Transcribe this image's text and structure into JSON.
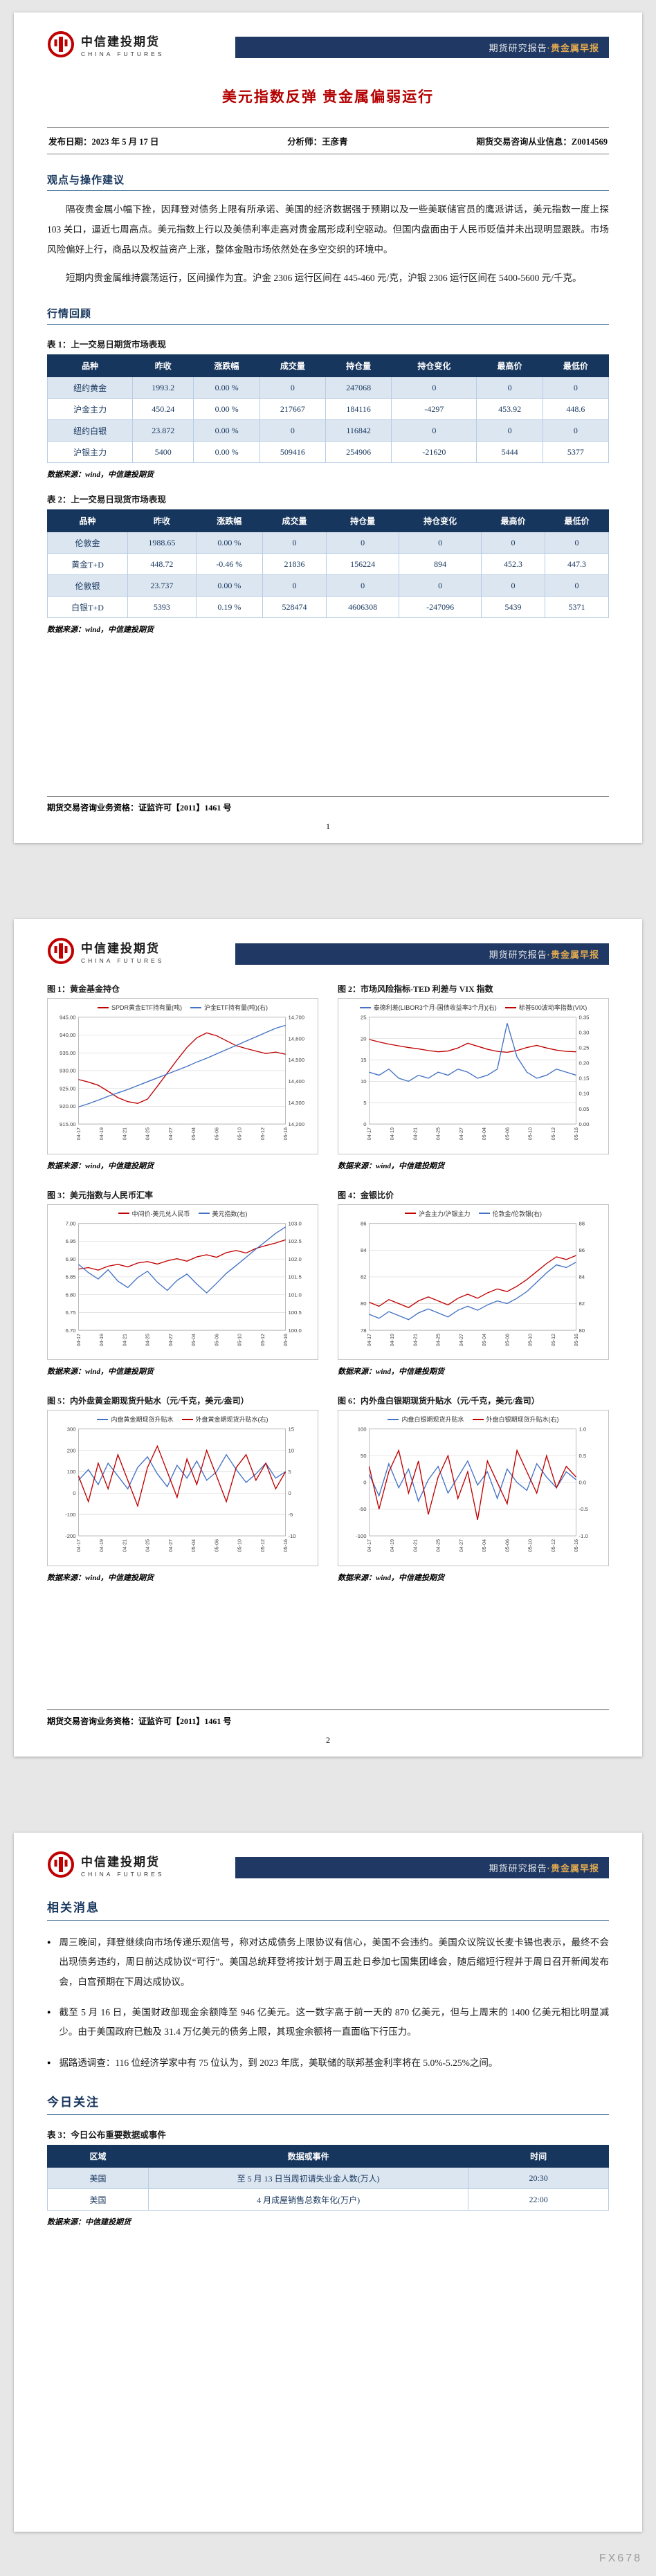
{
  "colors": {
    "accent_red": "#b30000",
    "navy": "#17365d",
    "banner_bg": "#1f3864",
    "banner_gold": "#e2aa4f",
    "table_row_alt": "#dce6f1",
    "line_red": "#c00000",
    "line_blue": "#4472c4"
  },
  "brand": {
    "logo_cn": "中信建投期货",
    "logo_en": "CHINA FUTURES",
    "banner_left": "期货研究报告",
    "banner_sep": "·",
    "banner_right": "贵金属早报"
  },
  "footer": {
    "license": "期货交易咨询业务资格：证监许可【2011】1461 号"
  },
  "watermark": "FX678",
  "page1": {
    "title": "美元指数反弹 贵金属偏弱运行",
    "meta": {
      "publish": "发布日期：2023 年 5 月 17 日",
      "analyst": "分析师：王彦青",
      "license": "期货交易咨询从业信息：Z0014569"
    },
    "sections": {
      "viewpoint": "观点与操作建议",
      "review": "行情回顾"
    },
    "paras": [
      "隔夜贵金属小幅下挫，因拜登对债务上限有所承诺、美国的经济数据强于预期以及一些美联储官员的鹰派讲话，美元指数一度上探 103 关口，逼近七周高点。美元指数上行以及美债利率走高对贵金属形成利空驱动。但国内盘面由于人民币贬值并未出现明显跟跌。市场风险偏好上行，商品以及权益资产上涨，整体金融市场依然处在多空交织的环境中。",
      "短期内贵金属维持震荡运行，区间操作为宜。沪金 2306 运行区间在 445-460 元/克，沪银 2306 运行区间在 5400-5600 元/千克。"
    ],
    "table1": {
      "caption": "表 1：上一交易日期货市场表现",
      "headers": [
        "品种",
        "昨收",
        "涨跌幅",
        "成交量",
        "持仓量",
        "持仓变化",
        "最高价",
        "最低价"
      ],
      "rows": [
        [
          "纽约黄金",
          "1993.2",
          "0.00 %",
          "0",
          "247068",
          "0",
          "0",
          "0"
        ],
        [
          "沪金主力",
          "450.24",
          "0.00 %",
          "217667",
          "184116",
          "-4297",
          "453.92",
          "448.6"
        ],
        [
          "纽约白银",
          "23.872",
          "0.00 %",
          "0",
          "116842",
          "0",
          "0",
          "0"
        ],
        [
          "沪银主力",
          "5400",
          "0.00 %",
          "509416",
          "254906",
          "-21620",
          "5444",
          "5377"
        ]
      ],
      "source": "数据来源：wind，中信建投期货"
    },
    "table2": {
      "caption": "表 2：上一交易日现货市场表现",
      "headers": [
        "品种",
        "昨收",
        "涨跌幅",
        "成交量",
        "持仓量",
        "持仓变化",
        "最高价",
        "最低价"
      ],
      "rows": [
        [
          "伦敦金",
          "1988.65",
          "0.00 %",
          "0",
          "0",
          "0",
          "0",
          "0"
        ],
        [
          "黄金T+D",
          "448.72",
          "-0.46 %",
          "21836",
          "156224",
          "894",
          "452.3",
          "447.3"
        ],
        [
          "伦敦银",
          "23.737",
          "0.00 %",
          "0",
          "0",
          "0",
          "0",
          "0"
        ],
        [
          "白银T+D",
          "5393",
          "0.19 %",
          "528474",
          "4606308",
          "-247096",
          "5439",
          "5371"
        ]
      ],
      "source": "数据来源：wind，中信建投期货"
    },
    "page_no": "1"
  },
  "page2": {
    "page_no": "2"
  },
  "page3": {
    "section_news": "相关消息",
    "bullets": [
      "周三晚间，拜登继续向市场传递乐观信号，称对达成债务上限协议有信心，美国不会违约。美国众议院议长麦卡锡也表示，最终不会出现债务违约，周日前达成协议“可行”。美国总统拜登将按计划于周五赴日参加七国集团峰会，随后缩短行程并于周日召开新闻发布会，白宫预期在下周达成协议。",
      "截至 5 月 16 日，美国财政部现金余额降至 946 亿美元。这一数字高于前一天的 870 亿美元，但与上周末的 1400 亿美元相比明显减少。由于美国政府已触及 31.4 万亿美元的债务上限，其现金余额将一直面临下行压力。",
      "据路透调查：116 位经济学家中有 75 位认为，到 2023 年底，美联储的联邦基金利率将在 5.0%-5.25%之间。"
    ],
    "section_focus": "今日关注",
    "table3": {
      "caption": "表 3：今日公布重要数据或事件",
      "headers": [
        "区域",
        "数据或事件",
        "时间"
      ],
      "rows": [
        [
          "美国",
          "至 5 月 13 日当周初请失业金人数(万人)",
          "20:30"
        ],
        [
          "美国",
          "4 月成屋销售总数年化(万户)",
          "22:00"
        ]
      ],
      "source": "数据来源：中信建投期货"
    }
  },
  "chart_data": [
    {
      "type": "line",
      "title": "图 1：黄金基金持仓",
      "legend": [
        {
          "label": "SPDR黄金ETF持有量(吨)",
          "color": "#c00000"
        },
        {
          "label": "沪金ETF持有量(吨)(右)",
          "color": "#4472c4"
        }
      ],
      "x_labels": [
        "04-17",
        "04-19",
        "04-21",
        "04-25",
        "04-27",
        "05-04",
        "05-06",
        "05-10",
        "05-12",
        "05-16"
      ],
      "left_axis": {
        "min": 915,
        "max": 945,
        "ticks": [
          "945.00",
          "940.00",
          "935.00",
          "930.00",
          "925.00",
          "920.00",
          "915.00"
        ]
      },
      "right_axis": {
        "min": 14200,
        "max": 14700,
        "ticks": [
          "14,700",
          "14,600",
          "14,500",
          "14,400",
          "14,300",
          "14,200"
        ]
      },
      "series": [
        {
          "name": "SPDR黄金ETF持有量(吨)",
          "axis": "left",
          "color": "#c00000",
          "values": [
            927.5,
            926.8,
            925.9,
            924.2,
            922.4,
            921.3,
            920.8,
            922.0,
            925.6,
            929.3,
            933.0,
            936.5,
            939.2,
            940.6,
            939.8,
            938.4,
            937.0,
            936.2,
            935.5,
            934.8,
            935.2,
            934.6
          ]
        },
        {
          "name": "沪金ETF持有量(吨)(右)",
          "axis": "right",
          "color": "#4472c4",
          "values": [
            14280,
            14295,
            14312,
            14330,
            14346,
            14362,
            14380,
            14398,
            14416,
            14434,
            14452,
            14470,
            14490,
            14508,
            14528,
            14548,
            14568,
            14588,
            14608,
            14628,
            14648,
            14662
          ]
        }
      ],
      "source": "数据来源：wind，中信建投期货"
    },
    {
      "type": "line",
      "title": "图 2：市场风险指标-TED 利差与 VIX 指数",
      "legend": [
        {
          "label": "泰德利差(LIBOR3个月-国债收益率3个月)(右)",
          "color": "#4472c4"
        },
        {
          "label": "标普500波动率指数(VIX)",
          "color": "#c00000"
        }
      ],
      "x_labels": [
        "04-17",
        "04-19",
        "04-21",
        "04-25",
        "04-27",
        "05-04",
        "05-06",
        "05-10",
        "05-12",
        "05-16"
      ],
      "left_axis": {
        "min": 0,
        "max": 25,
        "ticks": [
          "25",
          "20",
          "15",
          "10",
          "5",
          "0"
        ]
      },
      "right_axis": {
        "min": 0,
        "max": 0.35,
        "ticks": [
          "0.35",
          "0.30",
          "0.25",
          "0.20",
          "0.15",
          "0.10",
          "0.05",
          "0.00"
        ]
      },
      "series": [
        {
          "name": "标普500波动率指数(VIX)",
          "axis": "left",
          "color": "#c00000",
          "values": [
            19.8,
            19.2,
            18.7,
            18.3,
            17.9,
            17.6,
            17.2,
            16.9,
            17.1,
            17.8,
            18.9,
            18.2,
            17.5,
            17.0,
            16.8,
            17.2,
            17.9,
            18.4,
            17.8,
            17.3,
            17.0,
            16.9
          ]
        },
        {
          "name": "泰德利差(LIBOR3个月-国债收益率3个月)(右)",
          "axis": "right",
          "color": "#4472c4",
          "values": [
            0.17,
            0.16,
            0.18,
            0.15,
            0.14,
            0.16,
            0.15,
            0.17,
            0.16,
            0.18,
            0.17,
            0.15,
            0.16,
            0.18,
            0.33,
            0.22,
            0.17,
            0.15,
            0.16,
            0.18,
            0.17,
            0.16
          ]
        }
      ],
      "source": "数据来源：wind，中信建投期货"
    },
    {
      "type": "line",
      "title": "图 3：美元指数与人民币汇率",
      "legend": [
        {
          "label": "中间价-美元兑人民币",
          "color": "#c00000"
        },
        {
          "label": "美元指数(右)",
          "color": "#4472c4"
        }
      ],
      "x_labels": [
        "04-17",
        "04-19",
        "04-21",
        "04-25",
        "04-27",
        "05-04",
        "05-06",
        "05-10",
        "05-12",
        "05-16"
      ],
      "left_axis": {
        "min": 6.7,
        "max": 7.0,
        "ticks": [
          "7.00",
          "6.95",
          "6.90",
          "6.85",
          "6.80",
          "6.75",
          "6.70"
        ]
      },
      "right_axis": {
        "min": 100.0,
        "max": 103.0,
        "ticks": [
          "103.0",
          "102.5",
          "102.0",
          "101.5",
          "101.0",
          "100.5",
          "100.0"
        ]
      },
      "series": [
        {
          "name": "中间价-美元兑人民币",
          "axis": "left",
          "color": "#c00000",
          "values": [
            6.872,
            6.876,
            6.869,
            6.88,
            6.885,
            6.878,
            6.889,
            6.893,
            6.886,
            6.895,
            6.901,
            6.894,
            6.906,
            6.912,
            6.905,
            6.918,
            6.924,
            6.917,
            6.93,
            6.938,
            6.945,
            6.954
          ]
        },
        {
          "name": "美元指数(右)",
          "axis": "right",
          "color": "#4472c4",
          "values": [
            101.85,
            101.62,
            101.44,
            101.7,
            101.38,
            101.2,
            101.48,
            101.66,
            101.35,
            101.12,
            101.4,
            101.58,
            101.3,
            101.05,
            101.32,
            101.6,
            101.82,
            102.05,
            102.28,
            102.5,
            102.72,
            102.9
          ]
        }
      ],
      "source": "数据来源：wind，中信建投期货"
    },
    {
      "type": "line",
      "title": "图 4：金银比价",
      "legend": [
        {
          "label": "沪金主力/沪银主力",
          "color": "#c00000"
        },
        {
          "label": "伦敦金/伦敦银(右)",
          "color": "#4472c4"
        }
      ],
      "x_labels": [
        "04-17",
        "04-19",
        "04-21",
        "04-25",
        "04-27",
        "05-04",
        "05-06",
        "05-10",
        "05-12",
        "05-16"
      ],
      "left_axis": {
        "min": 78,
        "max": 86,
        "ticks": [
          "86",
          "84",
          "82",
          "80",
          "78"
        ]
      },
      "right_axis": {
        "min": 80,
        "max": 88,
        "ticks": [
          "88",
          "86",
          "84",
          "82",
          "80"
        ]
      },
      "series": [
        {
          "name": "沪金主力/沪银主力",
          "axis": "left",
          "color": "#c00000",
          "values": [
            80.1,
            79.8,
            80.3,
            80.0,
            79.7,
            80.2,
            80.5,
            80.2,
            79.9,
            80.4,
            80.7,
            80.4,
            80.8,
            81.1,
            80.9,
            81.3,
            81.8,
            82.4,
            83.0,
            83.5,
            83.3,
            83.6
          ]
        },
        {
          "name": "伦敦金/伦敦银(右)",
          "axis": "right",
          "color": "#4472c4",
          "values": [
            81.2,
            80.9,
            81.4,
            81.1,
            80.8,
            81.3,
            81.6,
            81.3,
            81.0,
            81.5,
            81.8,
            81.5,
            81.9,
            82.2,
            82.0,
            82.4,
            82.9,
            83.6,
            84.3,
            84.9,
            84.7,
            85.1
          ]
        }
      ],
      "source": "数据来源：wind，中信建投期货"
    },
    {
      "type": "line",
      "title": "图 5：内外盘黄金期现货升贴水（元/千克，美元/盎司）",
      "legend": [
        {
          "label": "内盘黄金期现货升贴水",
          "color": "#4472c4"
        },
        {
          "label": "外盘黄金期现货升贴水(右)",
          "color": "#c00000"
        }
      ],
      "x_labels": [
        "04-17",
        "04-19",
        "04-21",
        "04-25",
        "04-27",
        "05-04",
        "05-06",
        "05-10",
        "05-12",
        "05-16"
      ],
      "left_axis": {
        "min": -200,
        "max": 300,
        "ticks": [
          "300",
          "200",
          "100",
          "0",
          "-100",
          "-200"
        ]
      },
      "right_axis": {
        "min": -10,
        "max": 15,
        "ticks": [
          "15",
          "10",
          "5",
          "0",
          "-5",
          "-10"
        ]
      },
      "series": [
        {
          "name": "内盘黄金期现货升贴水",
          "axis": "left",
          "color": "#4472c4",
          "values": [
            60,
            110,
            40,
            140,
            80,
            20,
            120,
            170,
            90,
            30,
            130,
            70,
            150,
            60,
            100,
            180,
            110,
            50,
            90,
            140,
            70,
            100
          ]
        },
        {
          "name": "外盘黄金期现货升贴水(右)",
          "axis": "right",
          "color": "#c00000",
          "values": [
            4,
            -2,
            7,
            1,
            9,
            3,
            -3,
            6,
            11,
            5,
            -1,
            8,
            2,
            10,
            4,
            -2,
            6,
            9,
            3,
            7,
            1,
            5
          ]
        }
      ],
      "source": "数据来源：wind，中信建投期货"
    },
    {
      "type": "line",
      "title": "图 6：内外盘白银期现货升贴水（元/千克，美元/盎司）",
      "legend": [
        {
          "label": "内盘白银期现货升贴水",
          "color": "#4472c4"
        },
        {
          "label": "外盘白银期现货升贴水(右)",
          "color": "#c00000"
        }
      ],
      "x_labels": [
        "04-17",
        "04-19",
        "04-21",
        "04-25",
        "04-27",
        "05-04",
        "05-06",
        "05-10",
        "05-12",
        "05-16"
      ],
      "left_axis": {
        "min": -100,
        "max": 100,
        "ticks": [
          "100",
          "50",
          "0",
          "-50",
          "-100"
        ]
      },
      "right_axis": {
        "min": -1.0,
        "max": 1.0,
        "ticks": [
          "1.0",
          "0.5",
          "0.0",
          "-0.5",
          "-1.0"
        ]
      },
      "series": [
        {
          "name": "内盘白银期现货升贴水",
          "axis": "left",
          "color": "#4472c4",
          "values": [
            15,
            -25,
            35,
            -10,
            25,
            -35,
            5,
            30,
            -20,
            10,
            40,
            -5,
            20,
            -30,
            25,
            0,
            -15,
            35,
            10,
            -10,
            20,
            5
          ]
        },
        {
          "name": "外盘白银期现货升贴水(右)",
          "axis": "right",
          "color": "#c00000",
          "values": [
            0.3,
            -0.5,
            0.2,
            0.6,
            -0.2,
            0.4,
            -0.6,
            0.1,
            0.5,
            -0.3,
            0.2,
            -0.7,
            0.4,
            0.0,
            -0.4,
            0.6,
            0.2,
            -0.2,
            0.5,
            -0.1,
            0.3,
            0.1
          ]
        }
      ],
      "source": "数据来源：wind，中信建投期货"
    }
  ]
}
